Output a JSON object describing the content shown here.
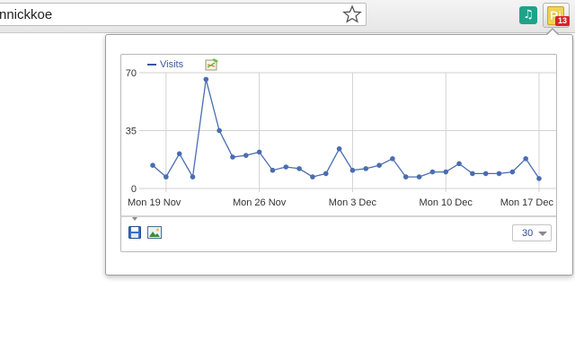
{
  "browser": {
    "address_text": "nnickkoe",
    "extensions": [
      {
        "name": "music-extension",
        "glyph": "♫",
        "color": "#1ea38b"
      },
      {
        "name": "pi-extension",
        "glyph": "Pi",
        "badge": "13",
        "color": "#f6d24c"
      }
    ]
  },
  "popup": {
    "legend_label": "Visits",
    "range_value": "30",
    "series_color": "#4a6db0"
  },
  "chart_data": {
    "type": "line",
    "series": [
      {
        "name": "Visits",
        "values": [
          14,
          7,
          21,
          7,
          66,
          35,
          19,
          20,
          22,
          11,
          13,
          12,
          7,
          9,
          24,
          11,
          12,
          14,
          18,
          7,
          7,
          10,
          10,
          15,
          9,
          9,
          9,
          10,
          18,
          6
        ]
      }
    ],
    "x_labels": [
      {
        "index": 1,
        "label": "Mon 19 Nov"
      },
      {
        "index": 8,
        "label": "Mon 26 Nov"
      },
      {
        "index": 15,
        "label": "Mon 3 Dec"
      },
      {
        "index": 22,
        "label": "Mon 10 Dec"
      },
      {
        "index": 29,
        "label": "Mon 17 Dec"
      }
    ],
    "y_ticks": [
      0,
      35,
      70
    ],
    "ylim": [
      0,
      70
    ],
    "grid": true
  }
}
